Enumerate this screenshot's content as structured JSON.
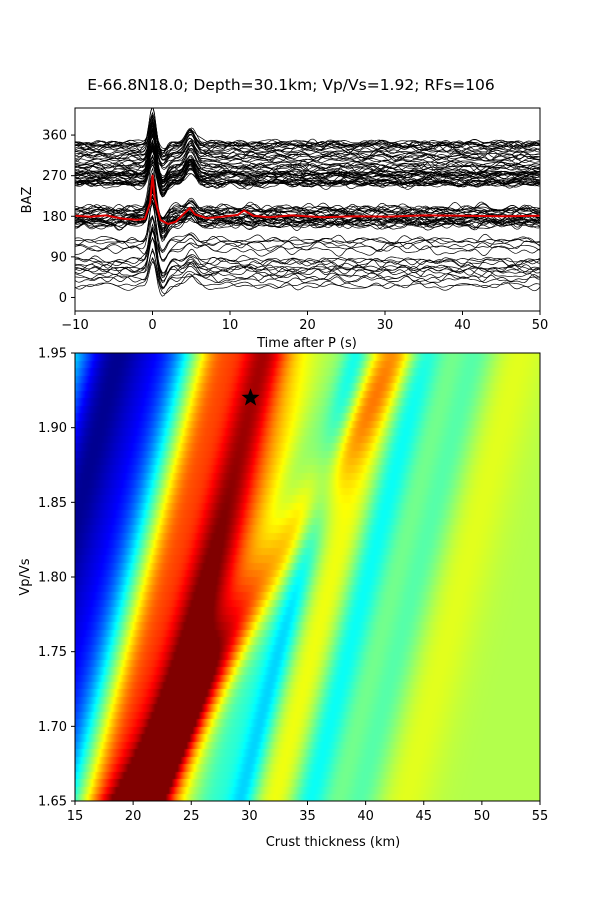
{
  "title": "E-66.8N18.0; Depth=30.1km; Vp/Vs=1.92; RFs=106",
  "chart_data": [
    {
      "type": "line",
      "name": "receiver-functions",
      "xlabel": "Time after P (s)",
      "ylabel": "BAZ",
      "xlim": [
        -10,
        50
      ],
      "ylim": [
        -30,
        420
      ],
      "x_ticks": [
        "−10",
        "0",
        "10",
        "20",
        "30",
        "40",
        "50"
      ],
      "x_tick_values": [
        -10,
        0,
        10,
        20,
        30,
        40,
        50
      ],
      "y_ticks": [
        "0",
        "90",
        "180",
        "270",
        "360"
      ],
      "y_tick_values": [
        0,
        90,
        180,
        270,
        360
      ],
      "trace_count": 106,
      "trace_color": "#000000",
      "stack_color": "#e00000",
      "stack_baz": 180,
      "stack_series": {
        "x": [
          -10,
          -8,
          -6,
          -4,
          -2,
          -1,
          -0.3,
          0,
          0.3,
          1,
          2,
          3,
          4,
          4.8,
          5.5,
          7,
          9,
          11,
          11.8,
          13,
          15,
          18,
          22,
          26,
          30,
          35,
          40,
          45,
          50
        ],
        "y": [
          181,
          179,
          182,
          175,
          172,
          174,
          210,
          272,
          220,
          172,
          163,
          168,
          185,
          198,
          184,
          176,
          179,
          183,
          193,
          181,
          178,
          182,
          178,
          180,
          179,
          182,
          181,
          180,
          181
        ]
      }
    },
    {
      "type": "heatmap",
      "name": "hk-stacking",
      "xlabel": "Crust thickness (km)",
      "ylabel": "Vp/Vs",
      "xlim": [
        15,
        55
      ],
      "ylim": [
        1.65,
        1.95
      ],
      "x_ticks": [
        "15",
        "20",
        "25",
        "30",
        "35",
        "40",
        "45",
        "50",
        "55"
      ],
      "x_tick_values": [
        15,
        20,
        25,
        30,
        35,
        40,
        45,
        50,
        55
      ],
      "y_ticks": [
        "1.65",
        "1.70",
        "1.75",
        "1.80",
        "1.85",
        "1.90",
        "1.95"
      ],
      "y_tick_values": [
        1.65,
        1.7,
        1.75,
        1.8,
        1.85,
        1.9,
        1.95
      ],
      "colormap": "jet",
      "best_fit": {
        "H": 30.1,
        "k": 1.92
      }
    }
  ]
}
